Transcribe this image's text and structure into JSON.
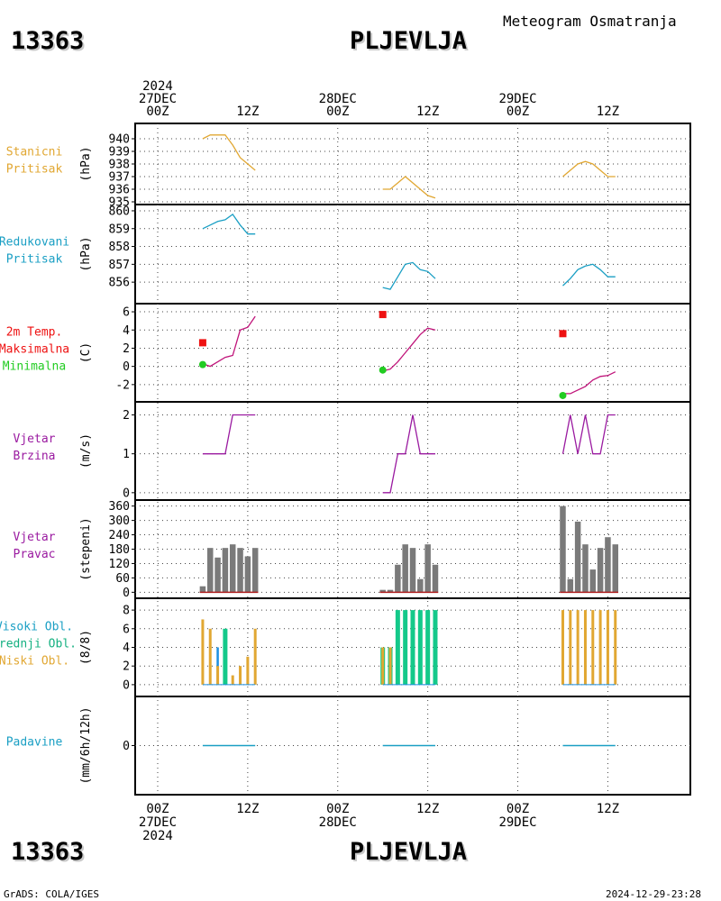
{
  "header": {
    "station_id": "13363",
    "station_name": "PLJEVLJA",
    "subtitle": "Meteogram Osmatranja"
  },
  "footer": {
    "station_id": "13363",
    "station_name": "PLJEVLJA",
    "credit": "GrADS: COLA/IGES",
    "timestamp": "2024-12-29-23:28"
  },
  "time_axis": {
    "top": [
      {
        "x": 0,
        "lines": [
          "2024",
          "27DEC",
          "00Z"
        ]
      },
      {
        "x": 12,
        "lines": [
          "12Z"
        ]
      },
      {
        "x": 24,
        "lines": [
          "28DEC",
          "00Z"
        ]
      },
      {
        "x": 36,
        "lines": [
          "12Z"
        ]
      },
      {
        "x": 48,
        "lines": [
          "29DEC",
          "00Z"
        ]
      },
      {
        "x": 60,
        "lines": [
          "12Z"
        ]
      }
    ],
    "bottom": [
      {
        "x": 0,
        "lines": [
          "00Z",
          "27DEC",
          "2024"
        ]
      },
      {
        "x": 12,
        "lines": [
          "12Z"
        ]
      },
      {
        "x": 24,
        "lines": [
          "00Z",
          "28DEC"
        ]
      },
      {
        "x": 36,
        "lines": [
          "12Z"
        ]
      },
      {
        "x": 48,
        "lines": [
          "00Z",
          "29DEC"
        ]
      },
      {
        "x": 60,
        "lines": [
          "12Z"
        ]
      }
    ]
  },
  "colors": {
    "orange": "#e1a732",
    "cyan": "#1a9fc4",
    "red": "#ee1111",
    "green": "#22cc22",
    "purple": "#9a1aa0",
    "gray": "#7a7a7a",
    "teal": "#14c98a",
    "blue": "#1c8fe0",
    "darkred": "#b02020"
  },
  "chart_data": [
    {
      "type": "line",
      "labels": [
        {
          "text": "Stanicni",
          "color": "#e1a732"
        },
        {
          "text": "Pritisak",
          "color": "#e1a732"
        }
      ],
      "ylabel": "(hPa)",
      "ylim": [
        935,
        941
      ],
      "yticks": [
        "935",
        "936",
        "937",
        "938",
        "939",
        "940"
      ],
      "series": [
        {
          "color": "#e1a732",
          "segments": [
            [
              [
                6,
                940
              ],
              [
                7,
                940.3
              ],
              [
                8,
                940.3
              ],
              [
                9,
                940.3
              ],
              [
                10,
                939.5
              ],
              [
                11,
                938.5
              ],
              [
                12,
                938
              ],
              [
                13,
                937.5
              ]
            ],
            [
              [
                30,
                936
              ],
              [
                31,
                936
              ],
              [
                32,
                936.5
              ],
              [
                33,
                937
              ],
              [
                34,
                936.5
              ],
              [
                35,
                936
              ],
              [
                36,
                935.5
              ],
              [
                37,
                935.3
              ]
            ],
            [
              [
                54,
                937
              ],
              [
                55,
                937.5
              ],
              [
                56,
                938
              ],
              [
                57,
                938.2
              ],
              [
                58,
                938
              ],
              [
                59,
                937.5
              ],
              [
                60,
                937
              ],
              [
                61,
                937
              ]
            ]
          ]
        }
      ]
    },
    {
      "type": "line",
      "labels": [
        {
          "text": "Redukovani",
          "color": "#1a9fc4"
        },
        {
          "text": "Pritisak",
          "color": "#1a9fc4"
        }
      ],
      "ylabel": "(hPa)",
      "ylim": [
        855.3,
        860.2
      ],
      "yticks": [
        "856",
        "857",
        "858",
        "859",
        "860"
      ],
      "series": [
        {
          "color": "#1a9fc4",
          "segments": [
            [
              [
                6,
                859
              ],
              [
                7,
                859.2
              ],
              [
                8,
                859.4
              ],
              [
                9,
                859.5
              ],
              [
                10,
                859.8
              ],
              [
                11,
                859.2
              ],
              [
                12,
                858.7
              ],
              [
                13,
                858.7
              ]
            ],
            [
              [
                30,
                855.7
              ],
              [
                31,
                855.6
              ],
              [
                32,
                856.3
              ],
              [
                33,
                857
              ],
              [
                34,
                857.1
              ],
              [
                35,
                856.7
              ],
              [
                36,
                856.6
              ],
              [
                37,
                856.2
              ]
            ],
            [
              [
                54,
                855.8
              ],
              [
                55,
                856.2
              ],
              [
                56,
                856.7
              ],
              [
                57,
                856.9
              ],
              [
                58,
                857
              ],
              [
                59,
                856.7
              ],
              [
                60,
                856.3
              ],
              [
                61,
                856.3
              ]
            ]
          ]
        }
      ]
    },
    {
      "type": "line",
      "labels": [
        {
          "text": "2m Temp.",
          "color": "#ee1111"
        },
        {
          "text": "Maksimalna",
          "color": "#ee1111"
        },
        {
          "text": "Minimalna",
          "color": "#22cc22"
        }
      ],
      "ylabel": "(C)",
      "ylim": [
        -3.5,
        6.5
      ],
      "yticks": [
        "-2",
        "0",
        "2",
        "4",
        "6"
      ],
      "series": [
        {
          "name": "2m Temp.",
          "color": "#c0147a",
          "segments": [
            [
              [
                6,
                0.3
              ],
              [
                7,
                0
              ],
              [
                8,
                0.5
              ],
              [
                9,
                1
              ],
              [
                10,
                1.2
              ],
              [
                11,
                4
              ],
              [
                12,
                4.3
              ],
              [
                13,
                5.5
              ]
            ],
            [
              [
                30,
                -0.5
              ],
              [
                31,
                -0.3
              ],
              [
                32,
                0.5
              ],
              [
                33,
                1.5
              ],
              [
                34,
                2.5
              ],
              [
                35,
                3.5
              ],
              [
                36,
                4.2
              ],
              [
                37,
                4
              ]
            ],
            [
              [
                54,
                -3
              ],
              [
                55,
                -3
              ],
              [
                56,
                -2.6
              ],
              [
                57,
                -2.2
              ],
              [
                58,
                -1.5
              ],
              [
                59,
                -1.1
              ],
              [
                60,
                -1
              ],
              [
                61,
                -0.6
              ]
            ]
          ]
        }
      ],
      "markers": [
        {
          "shape": "square",
          "color": "#ee1111",
          "points": [
            [
              6,
              2.6
            ],
            [
              30,
              5.7
            ],
            [
              54,
              3.6
            ]
          ]
        },
        {
          "shape": "circle",
          "color": "#22cc22",
          "points": [
            [
              6,
              0.2
            ],
            [
              30,
              -0.4
            ],
            [
              54,
              -3.2
            ]
          ]
        }
      ]
    },
    {
      "type": "line",
      "labels": [
        {
          "text": "Vjetar",
          "color": "#9a1aa0"
        },
        {
          "text": "Brzina",
          "color": "#9a1aa0"
        }
      ],
      "ylabel": "(m/s)",
      "ylim": [
        -0.05,
        2.15
      ],
      "yticks": [
        "0",
        "1",
        "2"
      ],
      "series": [
        {
          "color": "#9a1aa0",
          "segments": [
            [
              [
                6,
                1
              ],
              [
                7,
                1
              ],
              [
                8,
                1
              ],
              [
                9,
                1
              ],
              [
                10,
                2
              ],
              [
                11,
                2
              ],
              [
                12,
                2
              ],
              [
                13,
                2
              ]
            ],
            [
              [
                30,
                0
              ],
              [
                31,
                0
              ],
              [
                32,
                1
              ],
              [
                33,
                1
              ],
              [
                34,
                2
              ],
              [
                35,
                1
              ],
              [
                36,
                1
              ],
              [
                37,
                1
              ]
            ],
            [
              [
                54,
                1
              ],
              [
                55,
                2
              ],
              [
                56,
                1
              ],
              [
                57,
                2
              ],
              [
                58,
                1
              ],
              [
                59,
                1
              ],
              [
                60,
                2
              ],
              [
                61,
                2
              ]
            ]
          ]
        }
      ]
    },
    {
      "type": "bar",
      "labels": [
        {
          "text": "Vjetar",
          "color": "#9a1aa0"
        },
        {
          "text": "Pravac",
          "color": "#9a1aa0"
        }
      ],
      "ylabel": "(stepeni)",
      "ylim": [
        -10,
        370
      ],
      "yticks": [
        "0",
        "60",
        "120",
        "180",
        "240",
        "300",
        "360"
      ],
      "bars": [
        {
          "color": "#7a7a7a",
          "x": [
            6,
            7,
            8,
            9,
            10,
            11,
            12,
            13
          ],
          "values": [
            25,
            185,
            145,
            185,
            200,
            185,
            150,
            185
          ]
        },
        {
          "color": "#7a7a7a",
          "x": [
            30,
            31,
            32,
            33,
            34,
            35,
            36,
            37
          ],
          "values": [
            10,
            10,
            115,
            200,
            185,
            55,
            200,
            115
          ]
        },
        {
          "color": "#7a7a7a",
          "x": [
            54,
            55,
            56,
            57,
            58,
            59,
            60,
            61
          ],
          "values": [
            360,
            55,
            295,
            200,
            95,
            185,
            230,
            200
          ]
        }
      ],
      "baseline_color": "#b02020"
    },
    {
      "type": "bar",
      "labels": [
        {
          "text": "Visoki Obl.",
          "color": "#1a9fc4"
        },
        {
          "text": "Srednji Obl.",
          "color": "#14b080"
        },
        {
          "text": "Niski Obl.",
          "color": "#e1a732"
        }
      ],
      "ylabel": "(8/8)",
      "ylim": [
        -0.3,
        8.3
      ],
      "yticks": [
        "0",
        "2",
        "4",
        "6",
        "8"
      ],
      "series": [
        {
          "name": "Visoki Obl.",
          "color": "#1c8fe0",
          "x": [
            6,
            7,
            8,
            9,
            10,
            11,
            12,
            13,
            30,
            31,
            32,
            33,
            34,
            35,
            36,
            37,
            54,
            55,
            56,
            57,
            58,
            59,
            60,
            61
          ],
          "values": [
            0,
            0,
            4,
            0,
            0,
            0,
            0,
            0,
            0,
            0,
            0,
            0,
            0,
            0,
            0,
            0,
            0,
            0,
            0,
            0,
            0,
            0,
            0,
            0
          ]
        },
        {
          "name": "Srednji Obl.",
          "color": "#14c98a",
          "x": [
            6,
            7,
            8,
            9,
            10,
            11,
            12,
            13,
            30,
            31,
            32,
            33,
            34,
            35,
            36,
            37,
            54,
            55,
            56,
            57,
            58,
            59,
            60,
            61
          ],
          "values": [
            0,
            0,
            0,
            6,
            0,
            0,
            0,
            0,
            4,
            4,
            8,
            8,
            8,
            8,
            8,
            8,
            0,
            0,
            0,
            0,
            0,
            0,
            0,
            0
          ]
        },
        {
          "name": "Niski Obl.",
          "color": "#e1a732",
          "x": [
            6,
            7,
            8,
            9,
            10,
            11,
            12,
            13,
            30,
            31,
            32,
            33,
            34,
            35,
            36,
            37,
            54,
            55,
            56,
            57,
            58,
            59,
            60,
            61
          ],
          "values": [
            7,
            6,
            2,
            0,
            1,
            2,
            3,
            6,
            4,
            4,
            0,
            0,
            0,
            0,
            0,
            0,
            8,
            8,
            8,
            8,
            8,
            8,
            8,
            8
          ]
        }
      ]
    },
    {
      "type": "bar",
      "labels": [
        {
          "text": "Padavine",
          "color": "#1a9fc4"
        }
      ],
      "ylabel": "(mm/6h/12h)",
      "ylim": [
        -1,
        1
      ],
      "yticks": [
        "0"
      ],
      "series": [
        {
          "color": "#1a9fc4",
          "segments": [
            [
              6,
              13
            ],
            [
              30,
              37
            ],
            [
              54,
              61
            ]
          ],
          "value": 0
        }
      ]
    }
  ]
}
